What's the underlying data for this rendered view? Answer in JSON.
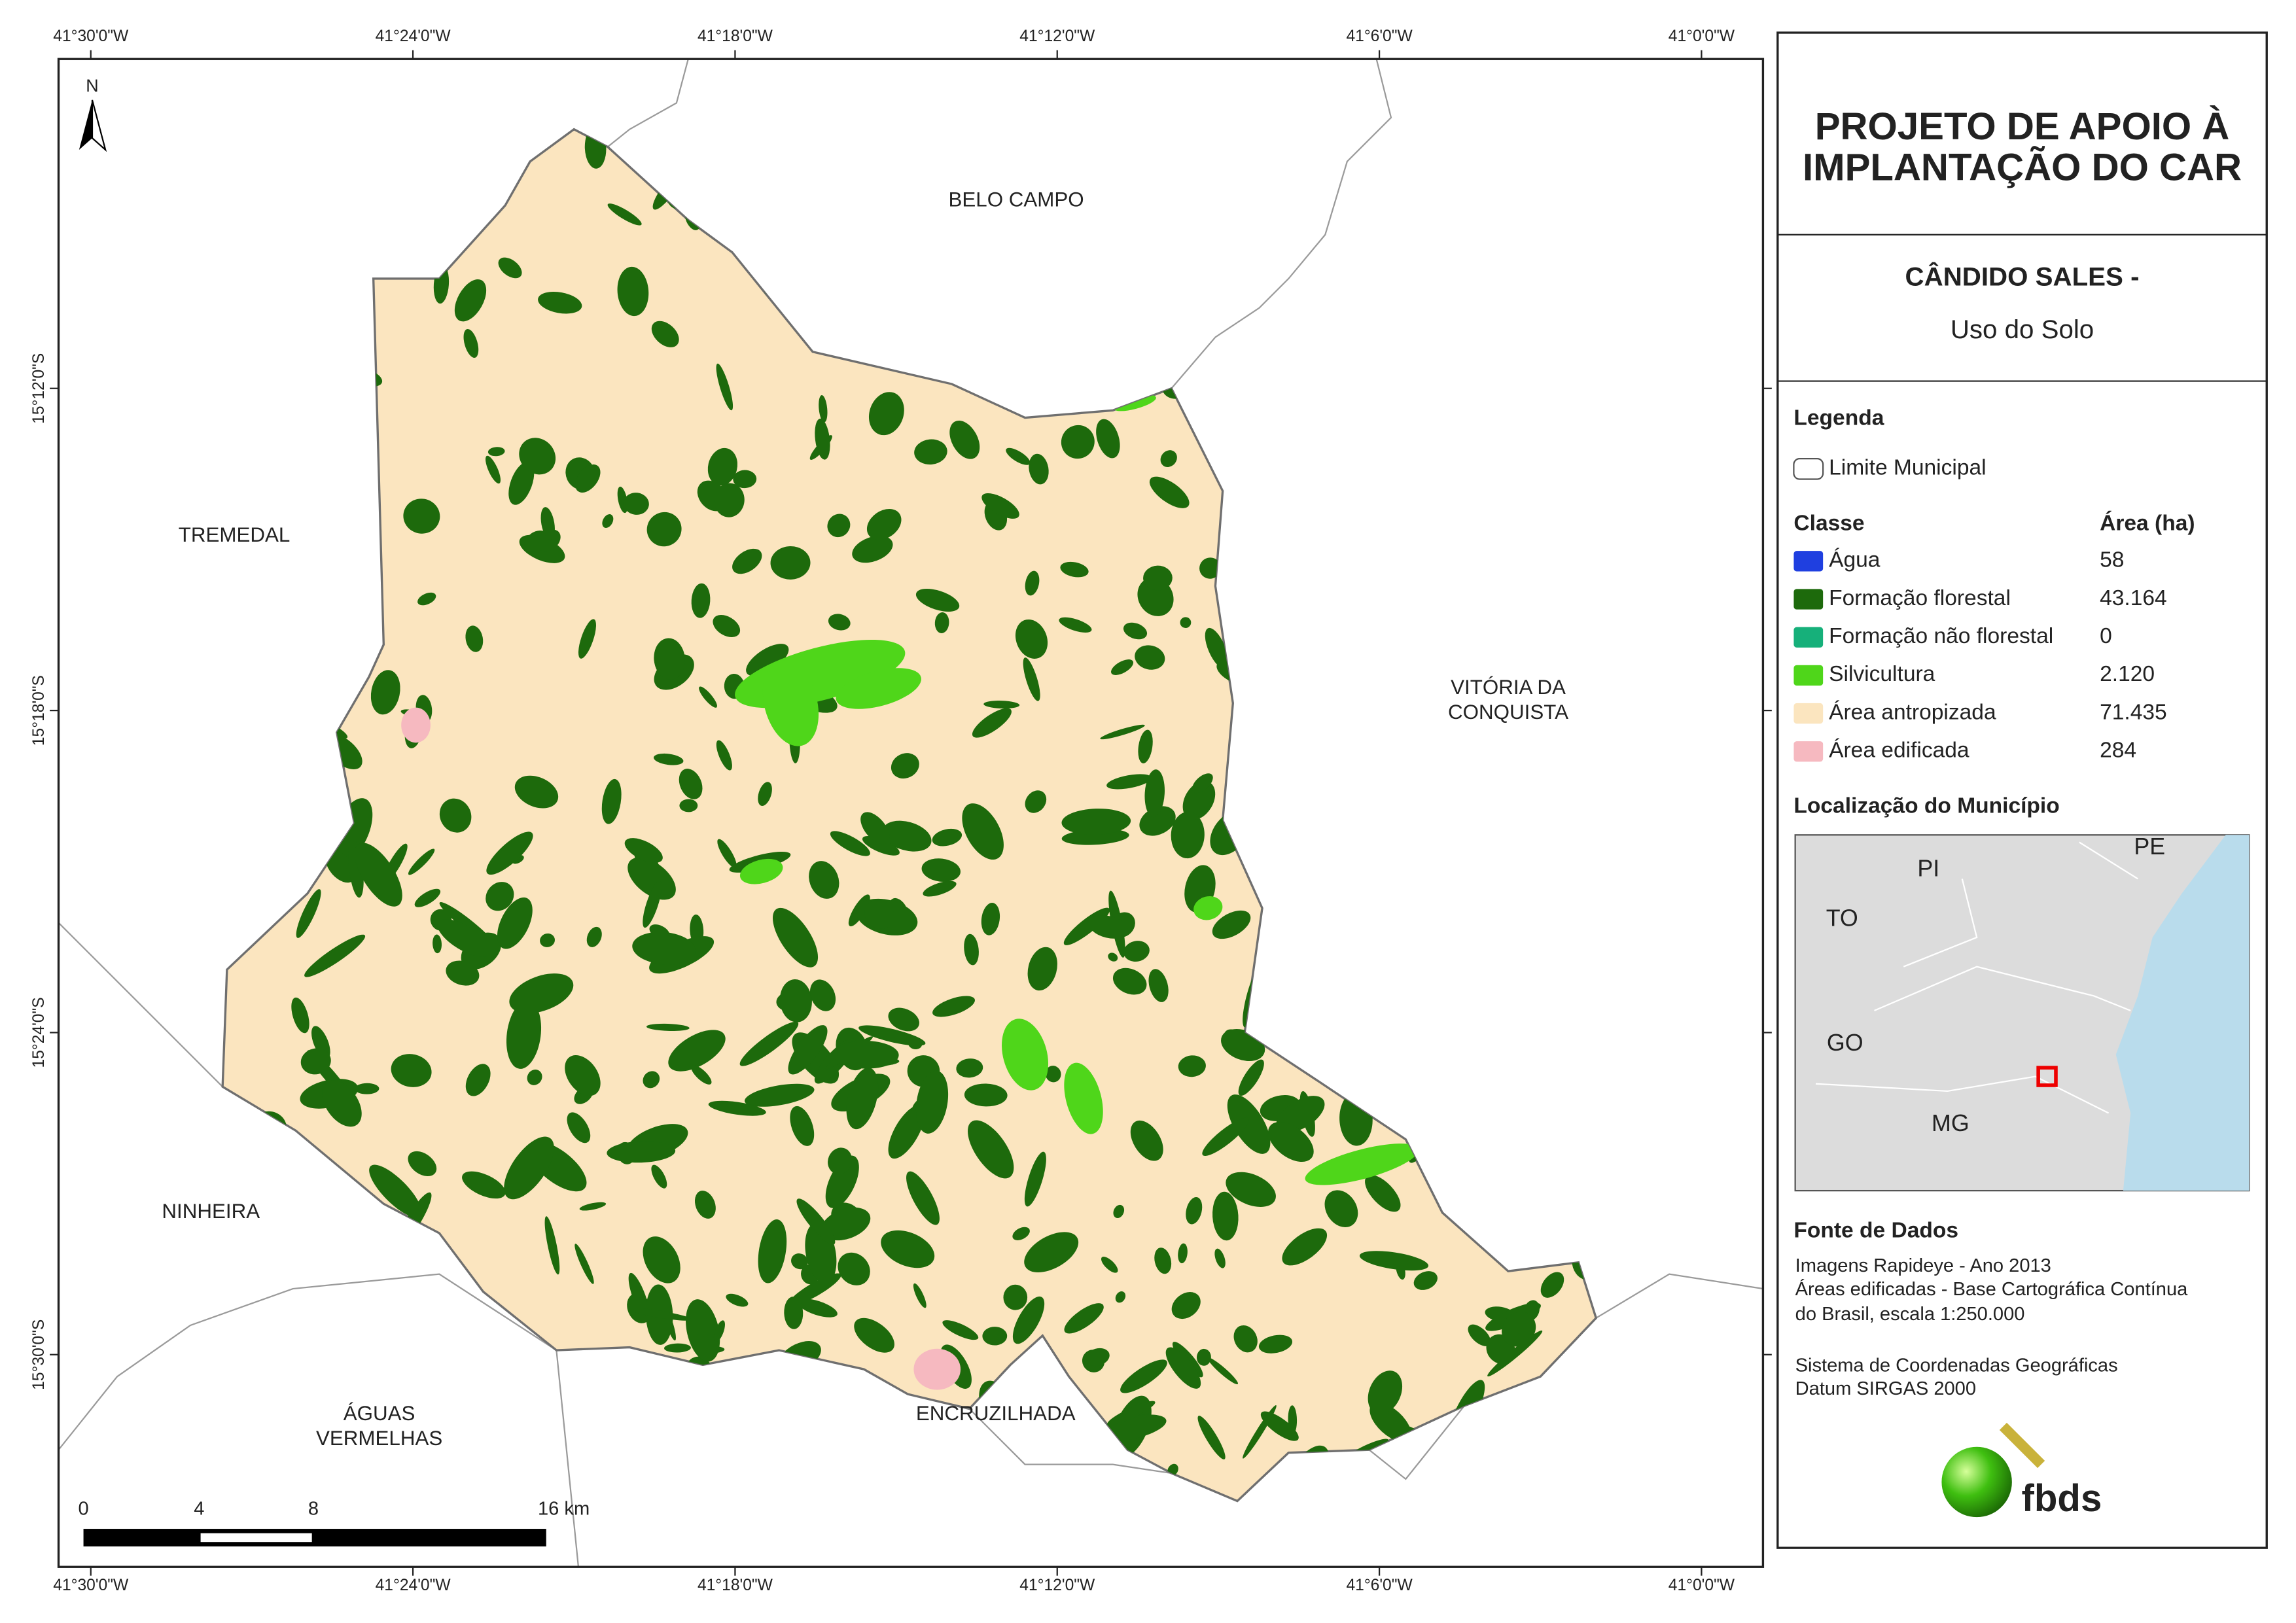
{
  "coordinates": {
    "longitude": [
      "41°30'0\"W",
      "41°24'0\"W",
      "41°18'0\"W",
      "41°12'0\"W",
      "41°6'0\"W",
      "41°0'0\"W"
    ],
    "latitude": [
      "15°12'0\"S",
      "15°18'0\"S",
      "15°24'0\"S",
      "15°30'0\"S"
    ]
  },
  "title": {
    "lines": [
      "PROJETO DE APOIO À",
      "IMPLANTAÇÃO DO CAR"
    ]
  },
  "subtitle": {
    "municipality": "CÂNDIDO SALES -",
    "theme": "Uso do Solo"
  },
  "legend": {
    "heading": "Legenda",
    "boundary": "Limite Municipal",
    "class_header": "Classe",
    "area_header": "Área (ha)",
    "rows": [
      {
        "label": "Água",
        "area": "58",
        "color": "#1f3fe0"
      },
      {
        "label": "Formação florestal",
        "area": "43.164",
        "color": "#1d6a0c"
      },
      {
        "label": "Formação não florestal",
        "area": "0",
        "color": "#16b07a"
      },
      {
        "label": "Silvicultura",
        "area": "2.120",
        "color": "#4fd61a"
      },
      {
        "label": "Área antropizada",
        "area": "71.435",
        "color": "#fbe5bf"
      },
      {
        "label": "Área edificada",
        "area": "284",
        "color": "#f6b9c0"
      }
    ]
  },
  "location": {
    "heading": "Localização do Município",
    "states": [
      "PI",
      "PE",
      "TO",
      "GO",
      "MG"
    ]
  },
  "neighbors": [
    [
      "BELO CAMPO"
    ],
    [
      "TREMEDAL"
    ],
    [
      "VITÓRIA DA",
      "CONQUISTA"
    ],
    [
      "NINHEIRA"
    ],
    [
      "ÁGUAS",
      "VERMELHAS"
    ],
    [
      "ENCRUZILHADA"
    ]
  ],
  "scale": {
    "ticks": [
      "0",
      "4",
      "8",
      "16 km"
    ]
  },
  "north": "N",
  "source": {
    "heading": "Fonte de Dados",
    "lines": [
      "Imagens Rapideye - Ano 2013",
      "Áreas edificadas - Base Cartográfica Contínua",
      "do Brasil, escala 1:250.000",
      "Sistema de Coordenadas Geográficas",
      "Datum SIRGAS 2000"
    ]
  },
  "logo": "fbds"
}
